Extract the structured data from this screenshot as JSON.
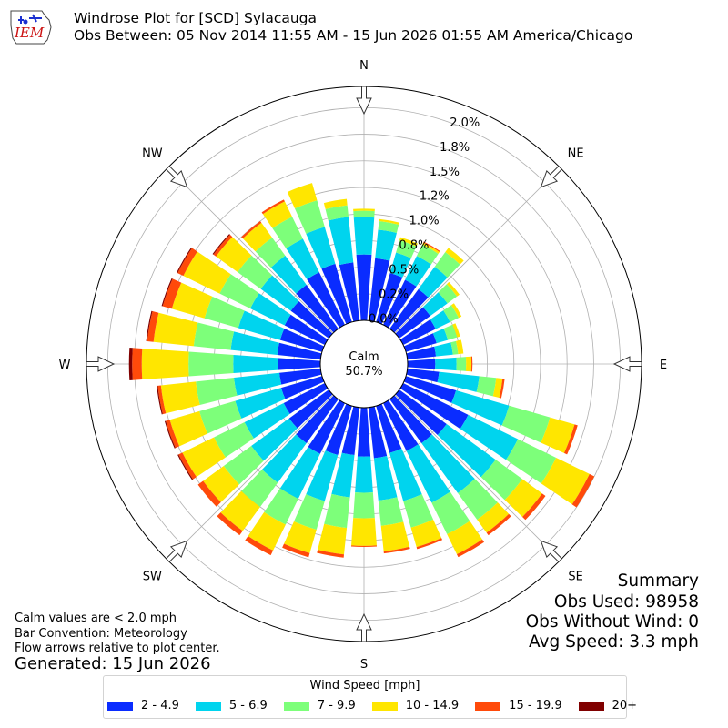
{
  "header": {
    "logo_text": "IEM",
    "title": "Windrose Plot for [SCD] Sylacauga",
    "subtitle": "Obs Between: 05 Nov 2014 11:55 AM - 15 Jun 2026 01:55 AM America/Chicago"
  },
  "notes": {
    "calm_note": "Calm values are < 2.0 mph",
    "bar_convention": "Bar Convention: Meteorology",
    "flow_arrows": "Flow arrows relative to plot center.",
    "generated": "Generated: 15 Jun 2026"
  },
  "summary": {
    "heading": "Summary",
    "obs_used": "Obs Used: 98958",
    "obs_without_wind": "Obs Without Wind: 0",
    "avg_speed": "Avg Speed: 3.3 mph"
  },
  "colors": {
    "2 - 4.9": "#0a2cff",
    "5 - 6.9": "#00d4ee",
    "7 - 9.9": "#7dff7a",
    "10 - 14.9": "#ffe600",
    "15 - 19.9": "#ff4a0a",
    "20+": "#800000"
  },
  "chart_data": {
    "type": "windrose",
    "calm": {
      "label": "Calm",
      "value": "50.7%"
    },
    "radial_ticks": [
      "0.0%",
      "0.2%",
      "0.5%",
      "0.8%",
      "1.0%",
      "1.2%",
      "1.5%",
      "1.8%",
      "2.0%"
    ],
    "radial_tick_values": [
      0.0,
      0.25,
      0.5,
      0.75,
      1.0,
      1.25,
      1.5,
      1.75,
      2.0
    ],
    "radial_max": 2.2,
    "directions_labels": [
      "N",
      "NE",
      "E",
      "SE",
      "S",
      "SW",
      "W",
      "NW"
    ],
    "legend_title": "Wind Speed [mph]",
    "speed_bins": [
      "2 - 4.9",
      "5 - 6.9",
      "7 - 9.9",
      "10 - 14.9",
      "15 - 19.9",
      "20+"
    ],
    "sector_width_deg": 10,
    "directions_deg": [
      0,
      10,
      20,
      30,
      40,
      50,
      60,
      70,
      80,
      90,
      100,
      110,
      120,
      130,
      140,
      150,
      160,
      170,
      180,
      190,
      200,
      210,
      220,
      230,
      240,
      250,
      260,
      270,
      280,
      290,
      300,
      310,
      320,
      330,
      340,
      350
    ],
    "cumulative_pct": [
      [
        0.62,
        0.97,
        1.03,
        1.05,
        1.05,
        1.05
      ],
      [
        0.59,
        0.86,
        0.94,
        0.96,
        0.96,
        0.96
      ],
      [
        0.48,
        0.68,
        0.8,
        0.83,
        0.83,
        0.83
      ],
      [
        0.47,
        0.72,
        0.84,
        0.86,
        0.87,
        0.87
      ],
      [
        0.46,
        0.72,
        0.89,
        0.94,
        0.94,
        0.94
      ],
      [
        0.36,
        0.56,
        0.67,
        0.7,
        0.7,
        0.7
      ],
      [
        0.34,
        0.49,
        0.58,
        0.61,
        0.61,
        0.61
      ],
      [
        0.3,
        0.41,
        0.5,
        0.53,
        0.53,
        0.53
      ],
      [
        0.27,
        0.43,
        0.48,
        0.53,
        0.53,
        0.53
      ],
      [
        0.26,
        0.46,
        0.55,
        0.6,
        0.61,
        0.61
      ],
      [
        0.3,
        0.68,
        0.84,
        0.9,
        0.92,
        0.92
      ],
      [
        0.49,
        1.01,
        1.41,
        1.65,
        1.68,
        1.68
      ],
      [
        0.68,
        1.2,
        1.6,
        1.95,
        2.0,
        2.0
      ],
      [
        0.55,
        1.12,
        1.43,
        1.66,
        1.7,
        1.7
      ],
      [
        0.51,
        1.09,
        1.4,
        1.55,
        1.58,
        1.58
      ],
      [
        0.5,
        1.04,
        1.37,
        1.58,
        1.61,
        1.61
      ],
      [
        0.46,
        0.93,
        1.19,
        1.38,
        1.4,
        1.4
      ],
      [
        0.48,
        0.88,
        1.12,
        1.36,
        1.38,
        1.38
      ],
      [
        0.46,
        0.8,
        1.04,
        1.3,
        1.31,
        1.31
      ],
      [
        0.45,
        0.85,
        1.14,
        1.39,
        1.42,
        1.42
      ],
      [
        0.48,
        0.93,
        1.21,
        1.44,
        1.48,
        1.48
      ],
      [
        0.53,
        1.0,
        1.27,
        1.54,
        1.59,
        1.59
      ],
      [
        0.51,
        0.97,
        1.25,
        1.53,
        1.58,
        1.58
      ],
      [
        0.46,
        0.9,
        1.22,
        1.46,
        1.52,
        1.52
      ],
      [
        0.43,
        0.84,
        1.16,
        1.49,
        1.53,
        1.54
      ],
      [
        0.4,
        0.85,
        1.2,
        1.49,
        1.53,
        1.54
      ],
      [
        0.39,
        0.82,
        1.18,
        1.51,
        1.54,
        1.55
      ],
      [
        0.4,
        0.82,
        1.24,
        1.68,
        1.77,
        1.8
      ],
      [
        0.41,
        0.85,
        1.2,
        1.58,
        1.64,
        1.65
      ],
      [
        0.41,
        0.82,
        1.15,
        1.47,
        1.56,
        1.57
      ],
      [
        0.42,
        0.78,
        1.1,
        1.48,
        1.54,
        1.55
      ],
      [
        0.44,
        0.79,
        1.06,
        1.31,
        1.34,
        1.35
      ],
      [
        0.51,
        0.85,
        1.06,
        1.23,
        1.25,
        1.25
      ],
      [
        0.55,
        0.9,
        1.13,
        1.29,
        1.31,
        1.31
      ],
      [
        0.57,
        0.93,
        1.19,
        1.36,
        1.36,
        1.36
      ],
      [
        0.55,
        0.98,
        1.09,
        1.15,
        1.15,
        1.15
      ]
    ]
  }
}
